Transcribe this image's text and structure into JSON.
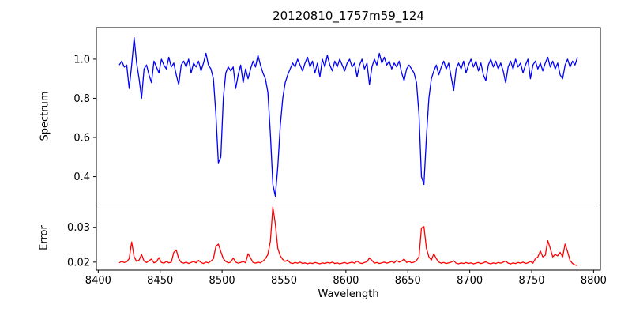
{
  "chart_data": {
    "type": "line",
    "title": "20120810_1757m59_124",
    "xlabel": "Wavelength",
    "grid": false,
    "legend": "none",
    "x": {
      "start": 8417,
      "step": 2,
      "count": 186
    },
    "xlim": [
      8398.5,
      8805.5
    ],
    "xticks": [
      8400,
      8450,
      8500,
      8550,
      8600,
      8650,
      8700,
      8750,
      8800
    ],
    "xtick_labels": [
      "8400",
      "8450",
      "8500",
      "8550",
      "8600",
      "8650",
      "8700",
      "8750",
      "8800"
    ],
    "panels": [
      {
        "name": "spectrum",
        "ylabel": "Spectrum",
        "color": "#0000ff",
        "ylim": [
          0.255,
          1.161
        ],
        "yticks": [
          0.4,
          0.6,
          0.8,
          1.0
        ],
        "ytick_labels": [
          "0.4",
          "0.6",
          "0.8",
          "1.0"
        ],
        "values": [
          0.97,
          0.99,
          0.96,
          0.97,
          0.85,
          0.97,
          1.11,
          0.98,
          0.9,
          0.8,
          0.95,
          0.97,
          0.92,
          0.88,
          0.99,
          0.96,
          0.93,
          1.0,
          0.97,
          0.95,
          1.01,
          0.96,
          0.98,
          0.92,
          0.87,
          0.97,
          0.99,
          0.96,
          1.0,
          0.93,
          0.98,
          0.96,
          0.99,
          0.94,
          0.98,
          1.03,
          0.97,
          0.95,
          0.9,
          0.72,
          0.47,
          0.5,
          0.8,
          0.93,
          0.96,
          0.94,
          0.96,
          0.85,
          0.92,
          0.97,
          0.88,
          0.95,
          0.9,
          0.95,
          0.99,
          0.96,
          1.02,
          0.97,
          0.93,
          0.9,
          0.83,
          0.62,
          0.36,
          0.3,
          0.45,
          0.66,
          0.8,
          0.88,
          0.92,
          0.95,
          0.98,
          0.96,
          1.0,
          0.97,
          0.94,
          0.98,
          1.01,
          0.96,
          0.99,
          0.93,
          0.98,
          0.91,
          1.0,
          0.96,
          1.02,
          0.97,
          0.94,
          0.99,
          0.96,
          1.0,
          0.97,
          0.94,
          0.98,
          1.0,
          0.96,
          0.98,
          0.91,
          0.97,
          1.0,
          0.95,
          0.98,
          0.87,
          0.96,
          1.0,
          0.97,
          1.03,
          0.98,
          1.01,
          0.97,
          0.99,
          0.95,
          0.98,
          0.96,
          0.99,
          0.93,
          0.89,
          0.95,
          0.97,
          0.95,
          0.93,
          0.88,
          0.72,
          0.4,
          0.36,
          0.6,
          0.8,
          0.9,
          0.94,
          0.97,
          0.92,
          0.96,
          0.99,
          0.95,
          0.98,
          0.91,
          0.84,
          0.95,
          0.98,
          0.95,
          0.99,
          0.93,
          0.97,
          1.0,
          0.96,
          0.99,
          0.94,
          0.98,
          0.92,
          0.89,
          0.97,
          1.0,
          0.96,
          0.99,
          0.95,
          0.98,
          0.94,
          0.88,
          0.96,
          0.99,
          0.95,
          1.0,
          0.96,
          0.98,
          0.93,
          0.97,
          1.0,
          0.9,
          0.97,
          0.99,
          0.95,
          0.98,
          0.94,
          0.98,
          1.01,
          0.96,
          0.99,
          0.95,
          0.98,
          0.92,
          0.9,
          0.97,
          1.0,
          0.96,
          0.99,
          0.97,
          1.01
        ]
      },
      {
        "name": "error",
        "ylabel": "Error",
        "color": "#ff0000",
        "ylim": [
          0.0177,
          0.0364
        ],
        "yticks": [
          0.02,
          0.03
        ],
        "ytick_labels": [
          "0.02",
          "0.03"
        ],
        "values": [
          0.0198,
          0.0202,
          0.0199,
          0.0201,
          0.021,
          0.0258,
          0.0215,
          0.0202,
          0.0206,
          0.0222,
          0.0203,
          0.0199,
          0.0204,
          0.0209,
          0.0198,
          0.0201,
          0.0213,
          0.0199,
          0.0197,
          0.0202,
          0.0198,
          0.02,
          0.0228,
          0.0235,
          0.021,
          0.0199,
          0.0197,
          0.02,
          0.0196,
          0.0199,
          0.0202,
          0.0198,
          0.0205,
          0.0199,
          0.0196,
          0.02,
          0.0198,
          0.0203,
          0.021,
          0.0245,
          0.0252,
          0.023,
          0.021,
          0.0202,
          0.0198,
          0.02,
          0.0212,
          0.02,
          0.0197,
          0.0199,
          0.0202,
          0.0198,
          0.0224,
          0.0212,
          0.0199,
          0.0197,
          0.02,
          0.0198,
          0.0203,
          0.021,
          0.0222,
          0.026,
          0.0358,
          0.031,
          0.024,
          0.0218,
          0.0208,
          0.0202,
          0.0206,
          0.0198,
          0.0196,
          0.0199,
          0.0197,
          0.02,
          0.0196,
          0.0198,
          0.0195,
          0.0198,
          0.0196,
          0.0199,
          0.0197,
          0.0195,
          0.0198,
          0.0196,
          0.0199,
          0.0197,
          0.02,
          0.0196,
          0.0198,
          0.0195,
          0.0197,
          0.0199,
          0.0196,
          0.0198,
          0.02,
          0.0197,
          0.0203,
          0.0198,
          0.0196,
          0.0199,
          0.0201,
          0.0212,
          0.0205,
          0.0197,
          0.0199,
          0.0196,
          0.0198,
          0.02,
          0.0197,
          0.0199,
          0.0202,
          0.0198,
          0.0205,
          0.02,
          0.0203,
          0.0209,
          0.0199,
          0.0202,
          0.0198,
          0.02,
          0.0205,
          0.0215,
          0.0298,
          0.0302,
          0.024,
          0.0215,
          0.0206,
          0.0224,
          0.021,
          0.02,
          0.0197,
          0.0199,
          0.0196,
          0.0198,
          0.02,
          0.0204,
          0.0197,
          0.0195,
          0.0198,
          0.0196,
          0.0199,
          0.0196,
          0.0198,
          0.0195,
          0.0197,
          0.0199,
          0.0196,
          0.0198,
          0.0201,
          0.0197,
          0.0195,
          0.0198,
          0.0196,
          0.0199,
          0.0197,
          0.02,
          0.0203,
          0.0197,
          0.0195,
          0.0198,
          0.0196,
          0.0199,
          0.0197,
          0.02,
          0.0196,
          0.0198,
          0.0202,
          0.0197,
          0.021,
          0.0215,
          0.0232,
          0.0215,
          0.022,
          0.0262,
          0.024,
          0.0215,
          0.0222,
          0.0218,
          0.0228,
          0.0215,
          0.0252,
          0.023,
          0.0205,
          0.0196,
          0.0192,
          0.019
        ]
      }
    ],
    "style": {
      "line_width": 1.3,
      "spine_color": "#000000",
      "background": "#ffffff"
    }
  }
}
